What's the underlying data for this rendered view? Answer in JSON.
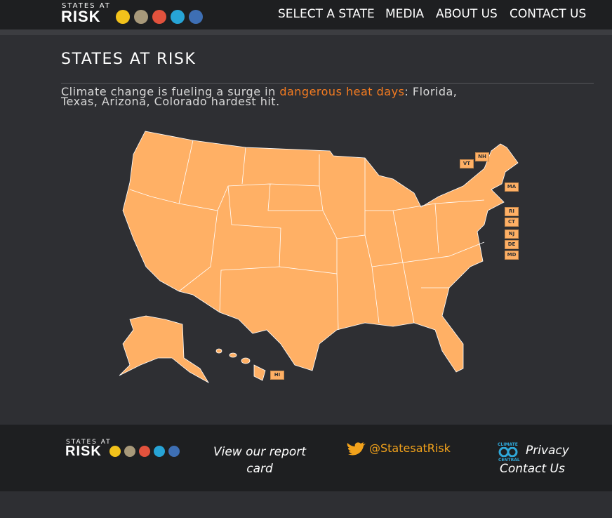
{
  "header": {
    "logo_top": "STATES AT",
    "logo_main": "RISK",
    "nav": [
      "SELECT A STATE",
      "MEDIA",
      "ABOUT US",
      "CONTACT US"
    ]
  },
  "main": {
    "title": "STATES AT RISK",
    "intro": {
      "before": "Climate change is fueling a surge in ",
      "link": "dangerous heat days",
      "after": ": Florida, Texas, Arizona, Colorado hardest hit."
    },
    "map_labels": [
      "VT",
      "NH",
      "MA",
      "RI",
      "CT",
      "NJ",
      "DE",
      "MD",
      "HI"
    ]
  },
  "footer": {
    "logo_top": "STATES AT",
    "logo_main": "RISK",
    "report": "View our report card",
    "twitter": "@StatesatRisk",
    "partner_top": "CLIMATE",
    "partner_bottom": "CENTRAL",
    "privacy": "Privacy",
    "contact": "Contact Us"
  }
}
